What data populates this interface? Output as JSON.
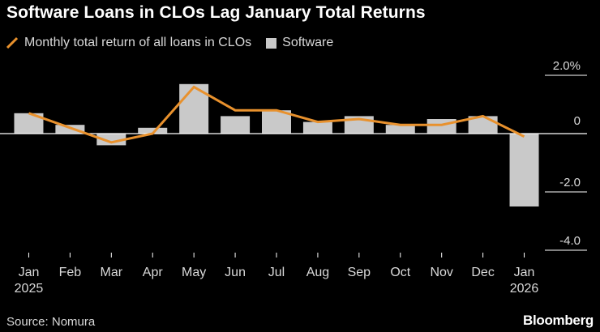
{
  "title": "Software Loans in CLOs Lag January Total Returns",
  "source": "Source: Nomura",
  "brand": "Bloomberg",
  "colors": {
    "background": "#000000",
    "line": "#e8912d",
    "bar": "#c9c9c9",
    "axis": "#ffffff",
    "grid": "#5a5a5a",
    "text": "#d9d9d9"
  },
  "chart_data": {
    "type": "bar",
    "categories": [
      "Jan",
      "Feb",
      "Mar",
      "Apr",
      "May",
      "Jun",
      "Jul",
      "Aug",
      "Sep",
      "Oct",
      "Nov",
      "Dec",
      "Jan"
    ],
    "category_years": [
      "2025",
      "",
      "",
      "",
      "",
      "",
      "",
      "",
      "",
      "",
      "",
      "",
      "2026"
    ],
    "series": [
      {
        "name": "Software",
        "kind": "bar",
        "color": "#c9c9c9",
        "values": [
          0.7,
          0.3,
          -0.4,
          0.2,
          1.7,
          0.6,
          0.8,
          0.4,
          0.6,
          0.3,
          0.5,
          0.6,
          -2.5
        ]
      },
      {
        "name": "Monthly total return of all loans in CLOs",
        "kind": "line",
        "color": "#e8912d",
        "values": [
          0.7,
          0.2,
          -0.3,
          0.0,
          1.6,
          0.8,
          0.8,
          0.4,
          0.5,
          0.3,
          0.3,
          0.6,
          -0.1
        ]
      }
    ],
    "yticks": [
      2.0,
      0,
      -2.0,
      -4.0
    ],
    "ytick_labels": [
      "2.0%",
      "0",
      "-2.0",
      "-4.0"
    ],
    "ylim": [
      -4.0,
      2.0
    ],
    "grid": true,
    "legend": "top-left",
    "xlabel": "",
    "ylabel": ""
  }
}
